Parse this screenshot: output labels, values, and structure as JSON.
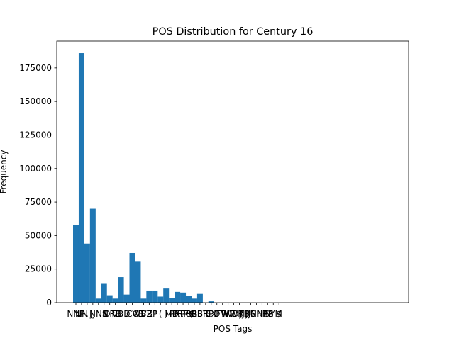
{
  "chart_data": {
    "type": "bar",
    "title": "POS Distribution for Century 16",
    "xlabel": "POS Tags",
    "ylabel": "Frequency",
    "bar_color": "#1f77b4",
    "ylim": [
      0,
      195000
    ],
    "yticks": [
      0,
      25000,
      50000,
      75000,
      100000,
      125000,
      150000,
      175000
    ],
    "ytick_labels": [
      "0",
      "25000",
      "50000",
      "75000",
      "100000",
      "125000",
      "150000",
      "175000"
    ],
    "categories": [
      "NNP",
      "NN",
      ",",
      "JJ",
      "NNS",
      "IN",
      "DT",
      "RB",
      "VBD",
      ".",
      "CC",
      "VB",
      "VBZ",
      "VBP",
      "''",
      "(",
      ")",
      "MD",
      "PRP",
      "PRP$",
      "POS",
      "RBS",
      "RBR",
      "``",
      "EX",
      "PDT",
      "FW",
      "WP",
      "WDT",
      "WRB",
      "JJR",
      "JJS",
      "UH",
      "NNPS",
      "RP",
      "SYM",
      "$"
    ],
    "values": [
      58000,
      186000,
      44000,
      70000,
      3000,
      14000,
      5500,
      3000,
      19000,
      6000,
      37000,
      31000,
      3000,
      9000,
      9000,
      4500,
      10500,
      3500,
      8000,
      7500,
      5000,
      3000,
      6500,
      0,
      1000,
      0,
      0,
      0,
      0,
      0,
      0,
      0,
      0,
      0,
      0,
      0,
      0
    ],
    "xtick_labels": [
      "NNP",
      "NN",
      ",",
      "JJ",
      "NNS",
      "IN",
      "DT",
      "RB",
      "VBD",
      ".",
      "CC",
      "VB",
      "VBZ",
      "VBP",
      "''",
      "(",
      ")",
      "MD",
      "PRP",
      "PRP$",
      "POS",
      "RBS",
      "RBR",
      "``",
      "EX",
      "PDT",
      "FW",
      "WP",
      "WDT",
      "WRB",
      "JJR",
      "JJS",
      "UH",
      "NNPS",
      "RP",
      "SYM",
      "$"
    ],
    "grid": false,
    "legend": "none"
  }
}
